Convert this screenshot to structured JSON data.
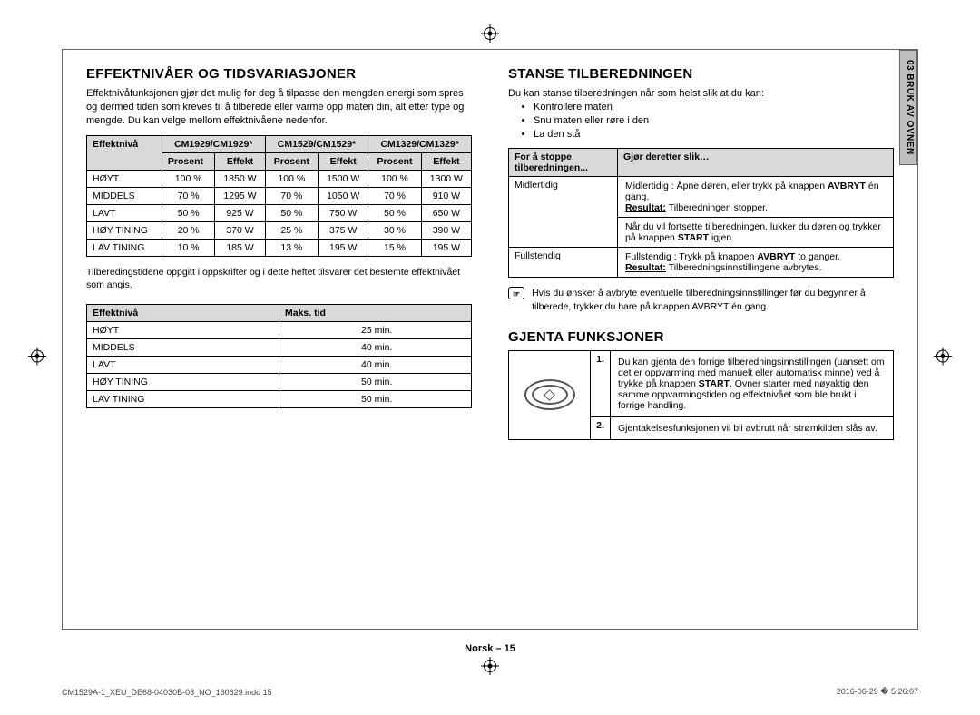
{
  "section_tab": "03  BRUK AV OVNEN",
  "left": {
    "heading": "EFFEKTNIVÅER OG TIDSVARIASJONER",
    "intro": "Effektnivåfunksjonen gjør det mulig for deg å tilpasse den mengden energi som spres og dermed tiden som kreves til å tilberede eller varme opp maten din, alt etter type og mengde. Du kan velge mellom effektnivåene nedenfor.",
    "power_table": {
      "col_level": "Effektnivå",
      "groups": [
        "CM1929/CM1929*",
        "CM1529/CM1529*",
        "CM1329/CM1329*"
      ],
      "sub_percent": "Prosent",
      "sub_power": "Effekt",
      "rows": [
        {
          "level": "HØYT",
          "p1": "100 %",
          "e1": "1850 W",
          "p2": "100 %",
          "e2": "1500 W",
          "p3": "100 %",
          "e3": "1300 W"
        },
        {
          "level": "MIDDELS",
          "p1": "70 %",
          "e1": "1295 W",
          "p2": "70 %",
          "e2": "1050 W",
          "p3": "70 %",
          "e3": "910 W"
        },
        {
          "level": "LAVT",
          "p1": "50 %",
          "e1": "925 W",
          "p2": "50 %",
          "e2": "750 W",
          "p3": "50 %",
          "e3": "650 W"
        },
        {
          "level": "HØY TINING",
          "p1": "20 %",
          "e1": "370 W",
          "p2": "25 %",
          "e2": "375 W",
          "p3": "30 %",
          "e3": "390 W"
        },
        {
          "level": "LAV TINING",
          "p1": "10 %",
          "e1": "185 W",
          "p2": "13 %",
          "e2": "195 W",
          "p3": "15 %",
          "e3": "195 W"
        }
      ]
    },
    "power_caption": "Tilberedingstidene oppgitt i oppskrifter og i dette heftet tilsvarer det bestemte effektnivået som angis.",
    "time_table": {
      "col_level": "Effektnivå",
      "col_time": "Maks. tid",
      "rows": [
        {
          "level": "HØYT",
          "time": "25 min."
        },
        {
          "level": "MIDDELS",
          "time": "40 min."
        },
        {
          "level": "LAVT",
          "time": "40 min."
        },
        {
          "level": "HØY TINING",
          "time": "50 min."
        },
        {
          "level": "LAV TINING",
          "time": "50 min."
        }
      ]
    }
  },
  "right": {
    "heading1": "STANSE TILBEREDNINGEN",
    "intro1": "Du kan stanse tilberedningen når som helst slik at du kan:",
    "bullets": [
      "Kontrollere maten",
      "Snu maten eller røre i den",
      "La den stå"
    ],
    "stop_table": {
      "h1": "For å stoppe tilberedningen...",
      "h2": "Gjør deretter slik…",
      "r1_c1": "Midlertidig",
      "r1_c2_line1_a": "Midlertidig : Åpne døren, eller trykk på knappen ",
      "r1_c2_line1_b": "AVBRYT",
      "r1_c2_line1_c": " én gang.",
      "r1_result_label": "Resultat:",
      "r1_result_text": "  Tilberedningen stopper.",
      "r1_c2_line3": "Når du vil fortsette tilberedningen, lukker du døren og trykker på knappen ",
      "r1_c2_line3_b": "START",
      "r1_c2_line3_c": " igjen.",
      "r2_c1": "Fullstendig",
      "r2_c2_line1_a": "Fullstendig : Trykk på knappen ",
      "r2_c2_line1_b": "AVBRYT",
      "r2_c2_line1_c": " to ganger.",
      "r2_result_label": "Resultat:",
      "r2_result_text": "  Tilberedningsinnstillingene avbrytes."
    },
    "note_icon": "☞",
    "note": "Hvis du ønsker å avbryte eventuelle tilberedningsinnstillinger før du begynner å tilberede, trykker du bare på knappen AVBRYT én gang.",
    "heading2": "GJENTA FUNKSJONER",
    "repeat_table": {
      "r1_num": "1.",
      "r1_text_a": "Du kan gjenta den forrige tilberedningsinnstillingen (uansett om det er oppvarming med manuelt eller automatisk minne) ved å trykke på knappen ",
      "r1_text_b": "START",
      "r1_text_c": ". Ovner starter med nøyaktig den samme oppvarmingstiden og effektnivået som ble brukt i forrige handling.",
      "r2_num": "2.",
      "r2_text": "Gjentakelsesfunksjonen vil bli avbrutt når strømkilden slås av."
    }
  },
  "footer": "Norsk – 15",
  "print_left": "CM1529A-1_XEU_DE68-04030B-03_NO_160629.indd   15",
  "print_right": "2016-06-29   � 5:26:07"
}
